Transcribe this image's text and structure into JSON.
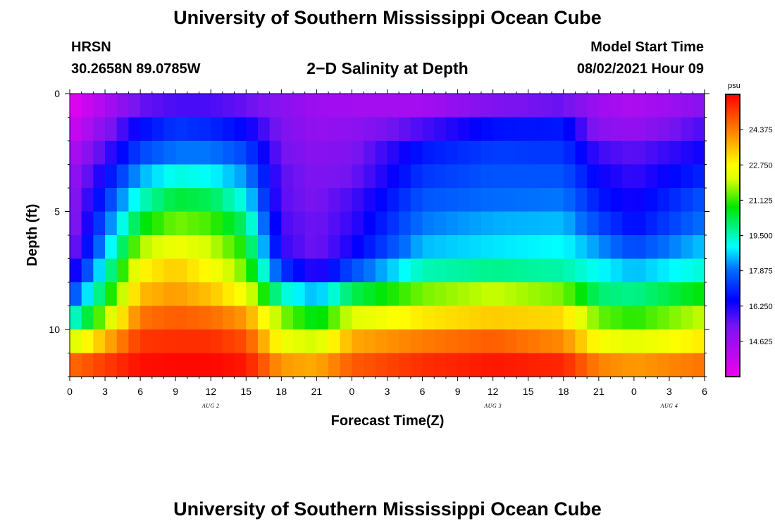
{
  "header": {
    "title_top": "University of Southern Mississippi Ocean Cube",
    "station": "HRSN",
    "coords": "30.2658N  89.0785W",
    "plot_title": "2−D Salinity at Depth",
    "model_label": "Model Start Time",
    "model_time": "08/02/2021 Hour 09",
    "title_bottom": "University of Southern Mississippi Ocean Cube"
  },
  "chart_data": {
    "type": "heatmap",
    "title": "2-D Salinity at Depth",
    "xlabel": "Forecast Time(Z)",
    "ylabel": "Depth (ft)",
    "x_hours_range": [
      0,
      54
    ],
    "x_tick_step_hours": 3,
    "x_tick_labels": [
      "0",
      "3",
      "6",
      "9",
      "12",
      "15",
      "18",
      "21",
      "0",
      "3",
      "6",
      "9",
      "12",
      "15",
      "18",
      "21",
      "0",
      "3",
      "6"
    ],
    "date_labels": [
      {
        "text": "AUG 2",
        "hour": 12
      },
      {
        "text": "AUG 3",
        "hour": 36
      },
      {
        "text": "AUG 4",
        "hour": 51
      }
    ],
    "y_range_ft": [
      0,
      12
    ],
    "y_tick_labels": [
      "0",
      "5",
      "10"
    ],
    "colorbar": {
      "unit": "psu",
      "min": 13.0,
      "max": 26.0,
      "tick_labels": [
        "24.375",
        "22.750",
        "21.125",
        "19.500",
        "17.875",
        "16.250",
        "14.625"
      ]
    },
    "time_hours": [
      0,
      6,
      9,
      12,
      15,
      18,
      21,
      24,
      30,
      36,
      42,
      45,
      48,
      54
    ],
    "depth_levels_ft": [
      0.5,
      1.5,
      2.5,
      3.5,
      4.5,
      5.5,
      6.5,
      7.5,
      8.5,
      9.5,
      10.5,
      11.5
    ],
    "salinity_psu": [
      [
        13.2,
        15.5,
        15.8,
        15.8,
        15.5,
        15.0,
        14.6,
        14.5,
        14.5,
        15.2,
        15.5,
        14.6,
        14.3,
        15.0
      ],
      [
        13.6,
        16.6,
        17.2,
        17.0,
        16.5,
        15.2,
        14.8,
        14.9,
        15.8,
        16.7,
        16.8,
        15.0,
        14.8,
        15.8
      ],
      [
        14.2,
        17.4,
        18.0,
        18.0,
        17.4,
        15.4,
        15.0,
        15.2,
        16.8,
        17.3,
        17.2,
        15.9,
        15.6,
        16.4
      ],
      [
        14.6,
        18.4,
        19.2,
        19.0,
        18.2,
        15.6,
        15.2,
        15.4,
        17.2,
        17.6,
        17.6,
        16.4,
        16.0,
        17.0
      ],
      [
        14.8,
        19.4,
        20.4,
        20.2,
        19.0,
        15.6,
        15.3,
        15.8,
        17.6,
        17.9,
        18.0,
        16.8,
        16.3,
        17.6
      ],
      [
        14.8,
        20.6,
        21.5,
        21.2,
        20.0,
        15.8,
        15.4,
        16.0,
        18.0,
        18.4,
        18.5,
        17.4,
        16.6,
        18.0
      ],
      [
        15.0,
        21.8,
        22.5,
        22.0,
        20.8,
        16.0,
        15.4,
        16.3,
        18.5,
        18.8,
        19.0,
        18.2,
        17.4,
        18.6
      ],
      [
        15.8,
        22.8,
        23.4,
        22.7,
        21.4,
        17.2,
        16.0,
        17.5,
        19.5,
        19.8,
        19.6,
        19.0,
        18.5,
        19.3
      ],
      [
        17.2,
        23.6,
        24.0,
        23.5,
        22.5,
        19.4,
        18.4,
        20.2,
        21.5,
        22.0,
        21.5,
        20.0,
        19.8,
        20.8
      ],
      [
        19.0,
        24.5,
        24.8,
        24.6,
        24.0,
        21.6,
        20.5,
        22.2,
        23.0,
        23.4,
        23.2,
        21.4,
        21.0,
        22.0
      ],
      [
        22.0,
        25.3,
        25.4,
        25.4,
        25.0,
        22.5,
        22.0,
        23.8,
        24.4,
        24.8,
        24.2,
        22.6,
        22.3,
        23.0
      ],
      [
        24.6,
        25.8,
        25.9,
        25.9,
        25.7,
        24.0,
        23.8,
        24.8,
        25.4,
        25.7,
        25.5,
        24.3,
        24.0,
        24.5
      ]
    ]
  }
}
